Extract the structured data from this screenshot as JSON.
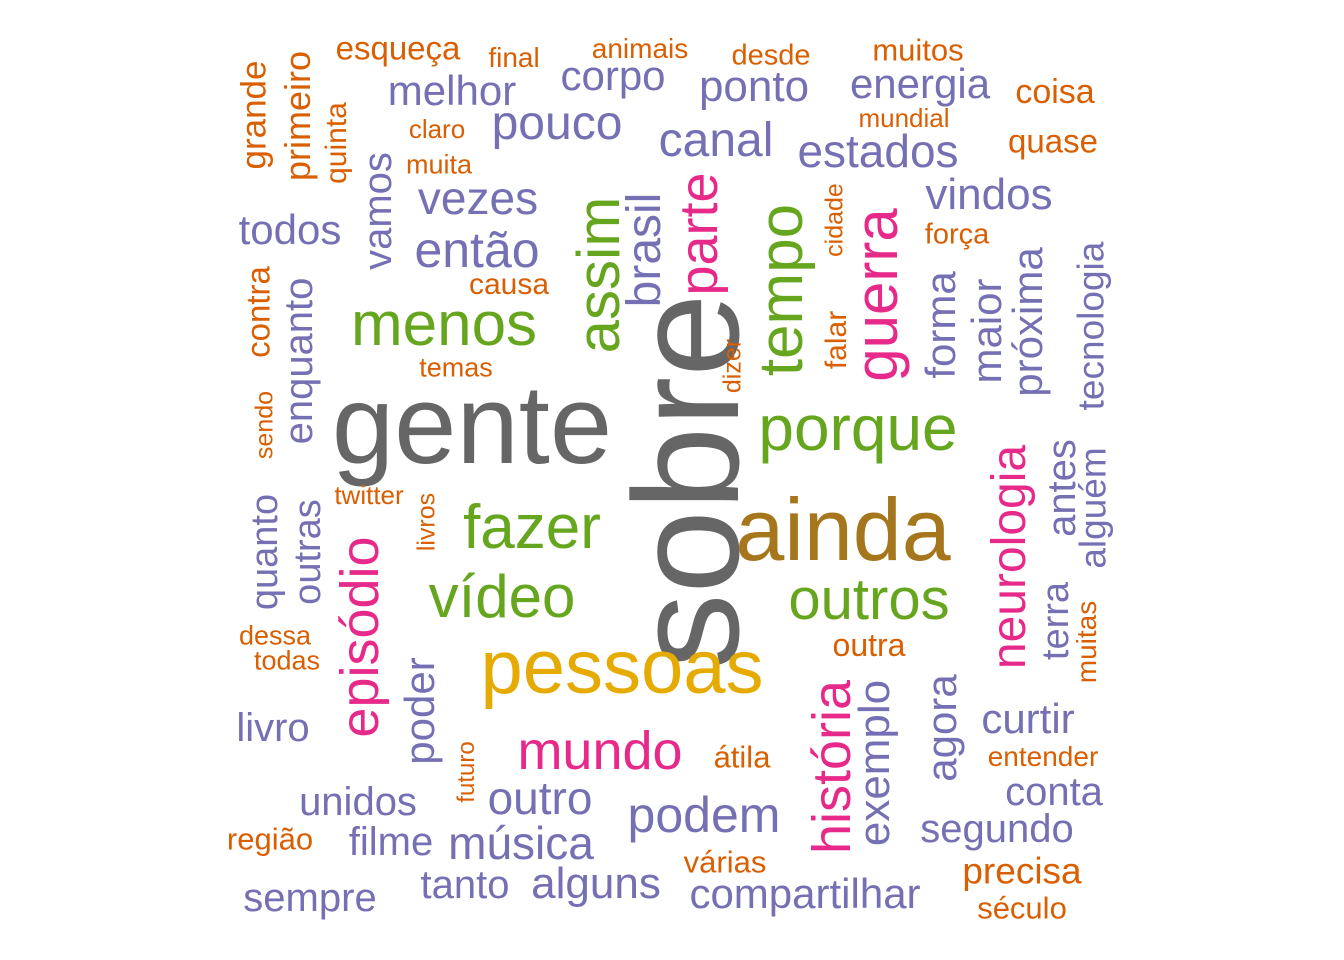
{
  "palette": {
    "orange": "#D95F02",
    "purple": "#7570B3",
    "green": "#66A61E",
    "pink": "#E7298A",
    "gray": "#666666",
    "gold": "#E6AB02",
    "brown": "#A6761D"
  },
  "words": [
    {
      "text": "sobre",
      "color": "gray",
      "rotated": true
    },
    {
      "text": "gente",
      "color": "gray",
      "rotated": false
    },
    {
      "text": "ainda",
      "color": "brown",
      "rotated": false
    },
    {
      "text": "pessoas",
      "color": "gold",
      "rotated": false
    },
    {
      "text": "porque",
      "color": "green",
      "rotated": false
    },
    {
      "text": "tempo",
      "color": "green",
      "rotated": true
    },
    {
      "text": "fazer",
      "color": "green",
      "rotated": false
    },
    {
      "text": "menos",
      "color": "green",
      "rotated": false
    },
    {
      "text": "assim",
      "color": "green",
      "rotated": true
    },
    {
      "text": "outros",
      "color": "green",
      "rotated": false
    },
    {
      "text": "vídeo",
      "color": "green",
      "rotated": false
    },
    {
      "text": "guerra",
      "color": "pink",
      "rotated": true
    },
    {
      "text": "parte",
      "color": "pink",
      "rotated": true
    },
    {
      "text": "episódio",
      "color": "pink",
      "rotated": true
    },
    {
      "text": "mundo",
      "color": "pink",
      "rotated": false
    },
    {
      "text": "história",
      "color": "pink",
      "rotated": true
    },
    {
      "text": "neurologia",
      "color": "pink",
      "rotated": true
    },
    {
      "text": "esqueça",
      "color": "orange",
      "rotated": false
    },
    {
      "text": "final",
      "color": "orange",
      "rotated": false
    },
    {
      "text": "animais",
      "color": "orange",
      "rotated": false
    },
    {
      "text": "desde",
      "color": "orange",
      "rotated": false
    },
    {
      "text": "muitos",
      "color": "orange",
      "rotated": false
    },
    {
      "text": "coisa",
      "color": "orange",
      "rotated": false
    },
    {
      "text": "mundial",
      "color": "orange",
      "rotated": false
    },
    {
      "text": "quase",
      "color": "orange",
      "rotated": false
    },
    {
      "text": "claro",
      "color": "orange",
      "rotated": false
    },
    {
      "text": "muita",
      "color": "orange",
      "rotated": false
    },
    {
      "text": "grande",
      "color": "orange",
      "rotated": true
    },
    {
      "text": "primeiro",
      "color": "orange",
      "rotated": true
    },
    {
      "text": "quinta",
      "color": "orange",
      "rotated": true
    },
    {
      "text": "cidade",
      "color": "orange",
      "rotated": true
    },
    {
      "text": "força",
      "color": "orange",
      "rotated": false
    },
    {
      "text": "causa",
      "color": "orange",
      "rotated": false
    },
    {
      "text": "contra",
      "color": "orange",
      "rotated": true
    },
    {
      "text": "temas",
      "color": "orange",
      "rotated": false
    },
    {
      "text": "dizer",
      "color": "orange",
      "rotated": true
    },
    {
      "text": "falar",
      "color": "orange",
      "rotated": true
    },
    {
      "text": "sendo",
      "color": "orange",
      "rotated": true
    },
    {
      "text": "twitter",
      "color": "orange",
      "rotated": false
    },
    {
      "text": "livros",
      "color": "orange",
      "rotated": true
    },
    {
      "text": "dessa",
      "color": "orange",
      "rotated": false
    },
    {
      "text": "todas",
      "color": "orange",
      "rotated": false
    },
    {
      "text": "outra",
      "color": "orange",
      "rotated": false
    },
    {
      "text": "muitas",
      "color": "orange",
      "rotated": true
    },
    {
      "text": "átila",
      "color": "orange",
      "rotated": false
    },
    {
      "text": "entender",
      "color": "orange",
      "rotated": false
    },
    {
      "text": "futuro",
      "color": "orange",
      "rotated": true
    },
    {
      "text": "região",
      "color": "orange",
      "rotated": false
    },
    {
      "text": "várias",
      "color": "orange",
      "rotated": false
    },
    {
      "text": "precisa",
      "color": "orange",
      "rotated": false
    },
    {
      "text": "século",
      "color": "orange",
      "rotated": false
    },
    {
      "text": "melhor",
      "color": "purple",
      "rotated": false
    },
    {
      "text": "corpo",
      "color": "purple",
      "rotated": false
    },
    {
      "text": "ponto",
      "color": "purple",
      "rotated": false
    },
    {
      "text": "energia",
      "color": "purple",
      "rotated": false
    },
    {
      "text": "pouco",
      "color": "purple",
      "rotated": false
    },
    {
      "text": "canal",
      "color": "purple",
      "rotated": false
    },
    {
      "text": "estados",
      "color": "purple",
      "rotated": false
    },
    {
      "text": "vamos",
      "color": "purple",
      "rotated": true
    },
    {
      "text": "vezes",
      "color": "purple",
      "rotated": false
    },
    {
      "text": "brasil",
      "color": "purple",
      "rotated": true
    },
    {
      "text": "vindos",
      "color": "purple",
      "rotated": false
    },
    {
      "text": "todos",
      "color": "purple",
      "rotated": false
    },
    {
      "text": "então",
      "color": "purple",
      "rotated": false
    },
    {
      "text": "forma",
      "color": "purple",
      "rotated": true
    },
    {
      "text": "maior",
      "color": "purple",
      "rotated": true
    },
    {
      "text": "próxima",
      "color": "purple",
      "rotated": true
    },
    {
      "text": "tecnologia",
      "color": "purple",
      "rotated": true
    },
    {
      "text": "enquanto",
      "color": "purple",
      "rotated": true
    },
    {
      "text": "antes",
      "color": "purple",
      "rotated": true
    },
    {
      "text": "alguém",
      "color": "purple",
      "rotated": true
    },
    {
      "text": "quanto",
      "color": "purple",
      "rotated": true
    },
    {
      "text": "outras",
      "color": "purple",
      "rotated": true
    },
    {
      "text": "terra",
      "color": "purple",
      "rotated": true
    },
    {
      "text": "poder",
      "color": "purple",
      "rotated": true
    },
    {
      "text": "exemplo",
      "color": "purple",
      "rotated": true
    },
    {
      "text": "agora",
      "color": "purple",
      "rotated": true
    },
    {
      "text": "livro",
      "color": "purple",
      "rotated": false
    },
    {
      "text": "curtir",
      "color": "purple",
      "rotated": false
    },
    {
      "text": "unidos",
      "color": "purple",
      "rotated": false
    },
    {
      "text": "outro",
      "color": "purple",
      "rotated": false
    },
    {
      "text": "podem",
      "color": "purple",
      "rotated": false
    },
    {
      "text": "conta",
      "color": "purple",
      "rotated": false
    },
    {
      "text": "segundo",
      "color": "purple",
      "rotated": false
    },
    {
      "text": "filme",
      "color": "purple",
      "rotated": false
    },
    {
      "text": "música",
      "color": "purple",
      "rotated": false
    },
    {
      "text": "sempre",
      "color": "purple",
      "rotated": false
    },
    {
      "text": "tanto",
      "color": "purple",
      "rotated": false
    },
    {
      "text": "alguns",
      "color": "purple",
      "rotated": false
    },
    {
      "text": "compartilhar",
      "color": "purple",
      "rotated": false
    }
  ]
}
